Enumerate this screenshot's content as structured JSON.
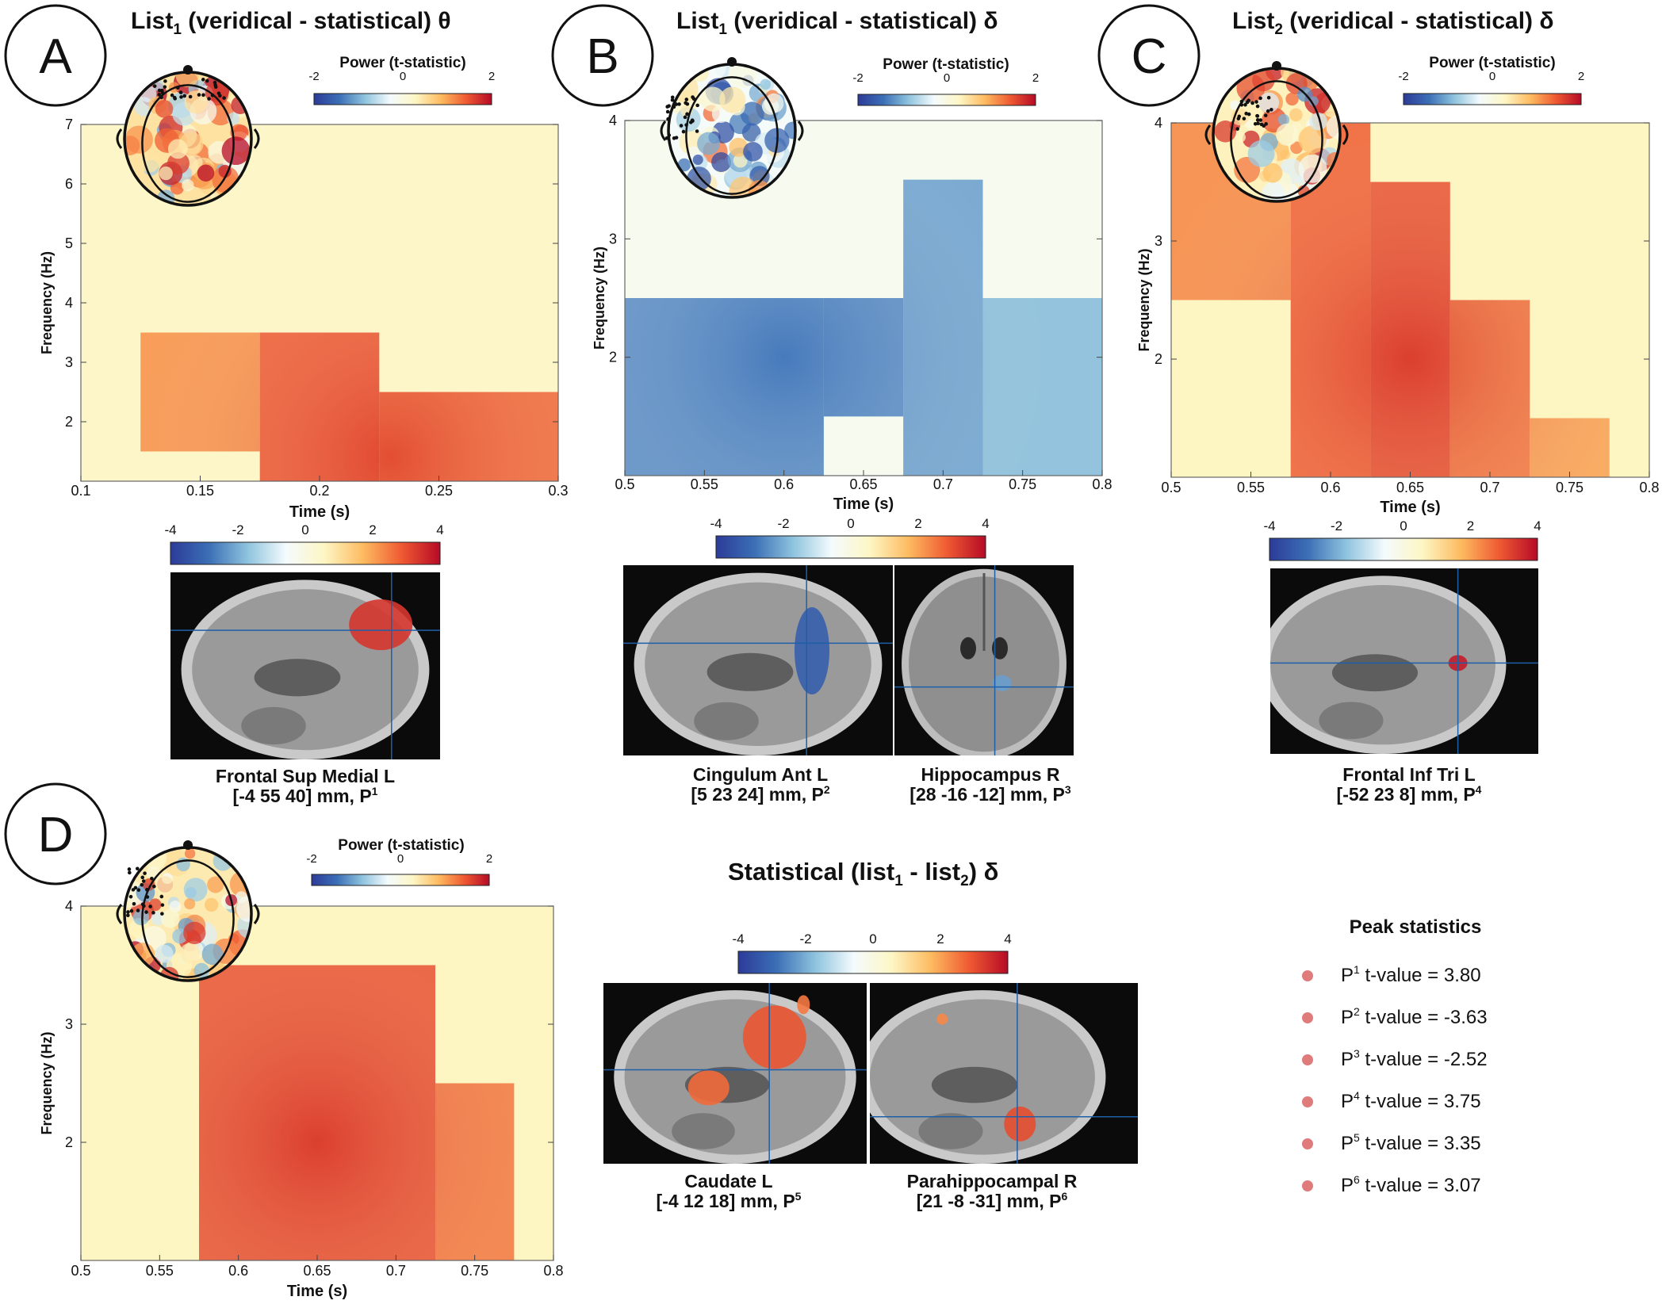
{
  "panels": [
    {
      "letter": "A",
      "title": {
        "pre": "List",
        "sub": "1",
        "post": " (veridical - statistical) θ"
      },
      "topo_cbar": {
        "label": "Power (t-statistic)",
        "ticks": [
          "-2",
          "0",
          "2"
        ]
      },
      "chart_data": {
        "type": "heatmap",
        "xlabel": "Time (s)",
        "ylabel": "Frequency (Hz)",
        "xlim": [
          0.1,
          0.3
        ],
        "ylim": [
          1,
          7
        ],
        "xticks": [
          "0.1",
          "0.15",
          "0.2",
          "0.25",
          "0.3"
        ],
        "yticks": [
          "2",
          "3",
          "4",
          "5",
          "6",
          "7"
        ],
        "background_t": 0.5,
        "clusters": [
          {
            "x": [
              0.125,
              0.175
            ],
            "y": [
              1.5,
              3.5
            ],
            "t": 2.2
          },
          {
            "x": [
              0.175,
              0.225
            ],
            "y": [
              1.0,
              3.5
            ],
            "t": 2.9
          },
          {
            "x": [
              0.225,
              0.3
            ],
            "y": [
              1.0,
              2.5
            ],
            "t": 2.7
          }
        ],
        "peak": {
          "x": 0.23,
          "y": 1.4
        }
      },
      "brain_cbar": {
        "ticks": [
          "-4",
          "-2",
          "0",
          "2",
          "4"
        ]
      },
      "sources": [
        {
          "region": "Frontal Sup Medial L",
          "coord": "[-4 55 40] mm, P",
          "peak_sup": "1",
          "t": 3.8
        }
      ]
    },
    {
      "letter": "B",
      "title": {
        "pre": "List",
        "sub": "1",
        "post": " (veridical - statistical)  δ"
      },
      "topo_cbar": {
        "label": "Power (t-statistic)",
        "ticks": [
          "-2",
          "0",
          "2"
        ]
      },
      "chart_data": {
        "type": "heatmap",
        "xlabel": "Time (s)",
        "ylabel": "Frequency (Hz)",
        "xlim": [
          0.5,
          0.8
        ],
        "ylim": [
          1,
          4
        ],
        "xticks": [
          "0.5",
          "0.55",
          "0.6",
          "0.65",
          "0.7",
          "0.75",
          "0.8"
        ],
        "yticks": [
          "2",
          "3",
          "4"
        ],
        "background_t": -0.3,
        "clusters": [
          {
            "x": [
              0.5,
              0.625
            ],
            "y": [
              1.0,
              2.5
            ],
            "t": -2.5
          },
          {
            "x": [
              0.625,
              0.675
            ],
            "y": [
              1.5,
              2.5
            ],
            "t": -2.5
          },
          {
            "x": [
              0.675,
              0.725
            ],
            "y": [
              1.0,
              3.5
            ],
            "t": -2.2
          },
          {
            "x": [
              0.725,
              0.8
            ],
            "y": [
              1.0,
              2.5
            ],
            "t": -1.8
          }
        ],
        "peak": {
          "x": 0.6,
          "y": 2.0
        }
      },
      "brain_cbar": {
        "ticks": [
          "-4",
          "-2",
          "0",
          "2",
          "4"
        ]
      },
      "sources": [
        {
          "region": "Cingulum Ant L",
          "coord": "[5 23 24] mm, P",
          "peak_sup": "2",
          "t": -3.63
        },
        {
          "region": "Hippocampus R",
          "coord": "[28 -16 -12] mm, P",
          "peak_sup": "3",
          "t": -2.52
        }
      ]
    },
    {
      "letter": "C",
      "title": {
        "pre": "List",
        "sub": "2",
        "post": " (veridical - statistical)  δ"
      },
      "topo_cbar": {
        "label": "Power (t-statistic)",
        "ticks": [
          "-2",
          "0",
          "2"
        ]
      },
      "chart_data": {
        "type": "heatmap",
        "xlabel": "Time (s)",
        "ylabel": "Frequency (Hz)",
        "xlim": [
          0.5,
          0.8
        ],
        "ylim": [
          1,
          4
        ],
        "xticks": [
          "0.5",
          "0.55",
          "0.6",
          "0.65",
          "0.7",
          "0.75",
          "0.8"
        ],
        "yticks": [
          "2",
          "3",
          "4"
        ],
        "background_t": 0.6,
        "clusters": [
          {
            "x": [
              0.5,
              0.575
            ],
            "y": [
              2.5,
              4.0
            ],
            "t": 2.3
          },
          {
            "x": [
              0.575,
              0.625
            ],
            "y": [
              1.0,
              4.0
            ],
            "t": 2.8
          },
          {
            "x": [
              0.625,
              0.675
            ],
            "y": [
              1.0,
              3.5
            ],
            "t": 3.0
          },
          {
            "x": [
              0.675,
              0.725
            ],
            "y": [
              1.0,
              2.5
            ],
            "t": 2.5
          },
          {
            "x": [
              0.725,
              0.775
            ],
            "y": [
              1.0,
              1.5
            ],
            "t": 2.0
          }
        ],
        "peak": {
          "x": 0.65,
          "y": 2.0
        }
      },
      "brain_cbar": {
        "ticks": [
          "-4",
          "-2",
          "0",
          "2",
          "4"
        ]
      },
      "sources": [
        {
          "region": "Frontal Inf Tri L",
          "coord": "[-52 23 8] mm, P",
          "peak_sup": "4",
          "t": 3.75
        }
      ]
    },
    {
      "letter": "D",
      "topo_cbar": {
        "label": "Power (t-statistic)",
        "ticks": [
          "-2",
          "0",
          "2"
        ]
      },
      "chart_data": {
        "type": "heatmap",
        "xlabel": "Time (s)",
        "ylabel": "Frequency (Hz)",
        "xlim": [
          0.5,
          0.8
        ],
        "ylim": [
          1,
          4
        ],
        "xticks": [
          "0.5",
          "0.55",
          "0.6",
          "0.65",
          "0.7",
          "0.75",
          "0.8"
        ],
        "yticks": [
          "2",
          "3",
          "4"
        ],
        "background_t": 0.6,
        "clusters": [
          {
            "x": [
              0.575,
              0.725
            ],
            "y": [
              1.0,
              3.5
            ],
            "t": 3.0
          },
          {
            "x": [
              0.725,
              0.775
            ],
            "y": [
              1.0,
              2.5
            ],
            "t": 2.5
          }
        ],
        "peak": {
          "x": 0.65,
          "y": 2.0
        }
      },
      "brain_cbar": {
        "ticks": [
          "-4",
          "-2",
          "0",
          "2",
          "4"
        ]
      },
      "sources": [
        {
          "region": "Caudate L",
          "coord": "[-4 12 18] mm, P",
          "peak_sup": "5",
          "t": 3.35
        },
        {
          "region": "Parahippocampal R",
          "coord": "[21 -8 -31] mm, P",
          "peak_sup": "6",
          "t": 3.07
        }
      ]
    }
  ],
  "statistical_title": {
    "pre": "Statistical (list",
    "sub1": "1",
    "mid": " - list",
    "sub2": "2",
    "post": ")  δ"
  },
  "peak_stats": {
    "title": "Peak statistics",
    "rows": [
      {
        "p": "P",
        "sup": "1",
        "label": " t-value = ",
        "value": " 3.80"
      },
      {
        "p": "P",
        "sup": "2",
        "label": " t-value = ",
        "value": "-3.63"
      },
      {
        "p": "P",
        "sup": "3",
        "label": " t-value = ",
        "value": "-2.52"
      },
      {
        "p": "P",
        "sup": "4",
        "label": " t-value = ",
        "value": " 3.75"
      },
      {
        "p": "P",
        "sup": "5",
        "label": " t-value = ",
        "value": " 3.35"
      },
      {
        "p": "P",
        "sup": "6",
        "label": " t-value = ",
        "value": " 3.07"
      }
    ],
    "marker_color": "#e07b7b"
  },
  "colormap": [
    "#2c3b98",
    "#3b6fb6",
    "#8ec3de",
    "#f4fbfd",
    "#fdf6c4",
    "#fdbb60",
    "#ef5a32",
    "#b60a27"
  ]
}
